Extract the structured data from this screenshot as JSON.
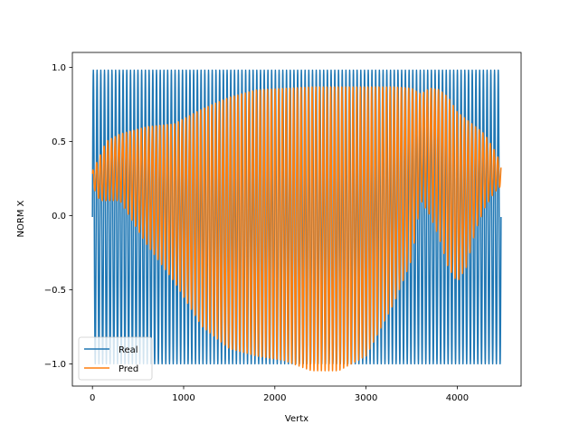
{
  "chart_data": {
    "type": "line",
    "xlabel": "Vertx",
    "ylabel": "NORM X",
    "xlim": [
      -220,
      4700
    ],
    "ylim": [
      -1.15,
      1.1
    ],
    "x_ticks": [
      0,
      1000,
      2000,
      3000,
      4000
    ],
    "x_tick_labels": [
      "0",
      "1000",
      "2000",
      "3000",
      "4000"
    ],
    "y_ticks": [
      -1.0,
      -0.5,
      0.0,
      0.5,
      1.0
    ],
    "y_tick_labels": [
      "−1.0",
      "−0.5",
      "0.0",
      "0.5",
      "1.0"
    ],
    "grid": false,
    "legend_position": "lower-left",
    "series": [
      {
        "name": "Real",
        "color": "#1f77b4",
        "x_range": [
          0,
          4480
        ],
        "n_cycles": 110,
        "envelope_x": [
          0,
          4480
        ],
        "upper": [
          0.98,
          0.98
        ],
        "lower": [
          -1.0,
          -1.0
        ]
      },
      {
        "name": "Pred",
        "color": "#ff7f0e",
        "x_range": [
          0,
          4480
        ],
        "n_cycles": 110,
        "envelope_x": [
          0,
          80,
          150,
          300,
          600,
          900,
          1200,
          1500,
          1800,
          2100,
          2400,
          2700,
          3000,
          3300,
          3500,
          3600,
          3700,
          3800,
          3900,
          4000,
          4100,
          4200,
          4300,
          4400,
          4480
        ],
        "upper": [
          0.3,
          0.4,
          0.5,
          0.55,
          0.6,
          0.62,
          0.72,
          0.8,
          0.85,
          0.86,
          0.87,
          0.87,
          0.87,
          0.87,
          0.86,
          0.82,
          0.86,
          0.85,
          0.8,
          0.7,
          0.65,
          0.6,
          0.55,
          0.45,
          0.35
        ],
        "lower": [
          0.2,
          0.1,
          0.1,
          0.1,
          -0.2,
          -0.45,
          -0.75,
          -0.9,
          -0.95,
          -0.98,
          -1.05,
          -1.05,
          -0.95,
          -0.6,
          -0.3,
          0.1,
          0.0,
          -0.15,
          -0.35,
          -0.45,
          -0.35,
          -0.1,
          0.05,
          0.15,
          0.2
        ]
      }
    ]
  }
}
